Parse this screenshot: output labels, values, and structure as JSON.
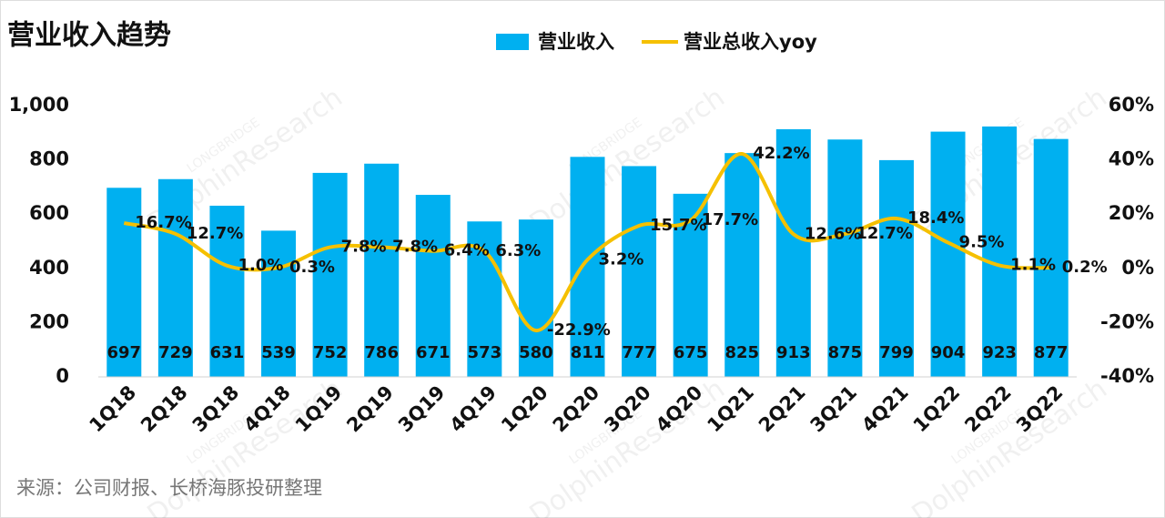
{
  "chart_data": {
    "type": "bar-line",
    "title": "营业收入趋势",
    "source": "来源：公司财报、长桥海豚投研整理",
    "watermark": [
      "LONGBRIDGE",
      "DolphinResearch"
    ],
    "categories": [
      "1Q18",
      "2Q18",
      "3Q18",
      "4Q18",
      "1Q19",
      "2Q19",
      "3Q19",
      "4Q19",
      "1Q20",
      "2Q20",
      "3Q20",
      "4Q20",
      "1Q21",
      "2Q21",
      "3Q21",
      "4Q21",
      "1Q22",
      "2Q22",
      "3Q22"
    ],
    "series": [
      {
        "name": "营业收入",
        "type": "bar",
        "color": "#00b0f0",
        "values": [
          697,
          729,
          631,
          539,
          752,
          786,
          671,
          573,
          580,
          811,
          777,
          675,
          825,
          913,
          875,
          799,
          904,
          923,
          877
        ]
      },
      {
        "name": "营业总收入yoy",
        "type": "line",
        "axis": "y2",
        "color": "#f5c000",
        "values": [
          16.7,
          12.7,
          1.0,
          0.3,
          7.8,
          7.8,
          6.4,
          6.3,
          -22.9,
          3.2,
          15.7,
          17.7,
          42.2,
          12.6,
          12.7,
          18.4,
          9.5,
          1.1,
          0.2
        ],
        "value_labels": [
          "16.7%",
          "12.7%",
          "1.0%",
          "0.3%",
          "7.8%",
          "7.8%",
          "6.4%",
          "6.3%",
          "-22.9%",
          "3.2%",
          "15.7%",
          "17.7%",
          "42.2%",
          "12.6%",
          "12.7%",
          "18.4%",
          "9.5%",
          "1.1%",
          "0.2%"
        ]
      }
    ],
    "ylim": [
      0,
      1000
    ],
    "yticks": [
      0,
      200,
      400,
      600,
      800,
      {
        "value": 1000,
        "label": "1,000"
      }
    ],
    "y2lim": [
      -40,
      60
    ],
    "y2ticks": [
      {
        "value": -40,
        "label": "-40%"
      },
      {
        "value": -20,
        "label": "-20%"
      },
      {
        "value": 0,
        "label": "0%"
      },
      {
        "value": 20,
        "label": "20%"
      },
      {
        "value": 40,
        "label": "40%"
      },
      {
        "value": 60,
        "label": "60%"
      }
    ],
    "legend": "top"
  }
}
